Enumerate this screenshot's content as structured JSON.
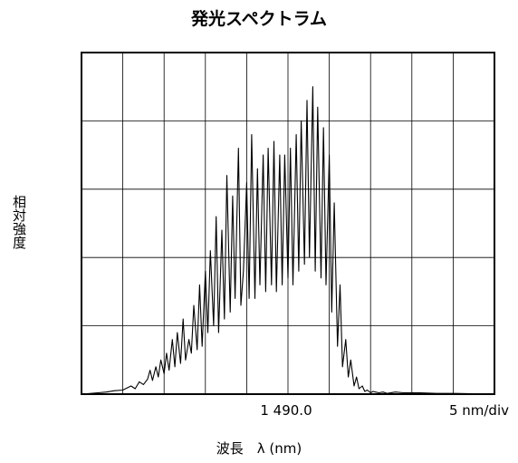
{
  "chart_data": {
    "type": "line",
    "title": "発光スペクトラム",
    "ylabel": "相対強度",
    "xlabel": "波長　λ (nm)",
    "x_center_label": "1 490.0",
    "x_scale_label": "5 nm/div",
    "x_center": 1490.0,
    "x_per_div": 5,
    "xlim": [
      1465,
      1515
    ],
    "ylim": [
      0,
      5
    ],
    "grid": true,
    "series": [
      {
        "x": [
          1465,
          1467,
          1468,
          1469,
          1470,
          1470.5,
          1471,
          1471.5,
          1472,
          1472.5,
          1473,
          1473.3,
          1473.6,
          1474,
          1474.3,
          1474.6,
          1475,
          1475.3,
          1475.6,
          1476,
          1476.3,
          1476.6,
          1477,
          1477.3,
          1477.6,
          1478,
          1478.3,
          1478.6,
          1479,
          1479.3,
          1479.6,
          1480,
          1480.3,
          1480.6,
          1481,
          1481.3,
          1481.6,
          1482,
          1482.3,
          1482.6,
          1483,
          1483.3,
          1483.6,
          1484,
          1484.3,
          1484.6,
          1485,
          1485.3,
          1485.6,
          1486,
          1486.3,
          1486.6,
          1487,
          1487.3,
          1487.6,
          1488,
          1488.3,
          1488.6,
          1489,
          1489.3,
          1489.6,
          1490,
          1490.3,
          1490.6,
          1491,
          1491.3,
          1491.6,
          1492,
          1492.3,
          1492.6,
          1493,
          1493.3,
          1493.6,
          1494,
          1494.3,
          1494.6,
          1495,
          1495.3,
          1495.6,
          1496,
          1496.3,
          1496.6,
          1497,
          1497.3,
          1497.6,
          1498,
          1498.3,
          1498.6,
          1499,
          1499.3,
          1499.6,
          1500,
          1500.3,
          1500.6,
          1501,
          1501.5,
          1502,
          1503,
          1504,
          1506,
          1508,
          1510,
          1515
        ],
        "y": [
          0.0,
          0.02,
          0.03,
          0.05,
          0.06,
          0.09,
          0.12,
          0.08,
          0.18,
          0.14,
          0.22,
          0.35,
          0.2,
          0.4,
          0.25,
          0.5,
          0.3,
          0.6,
          0.35,
          0.8,
          0.4,
          0.9,
          0.45,
          1.1,
          0.5,
          0.8,
          0.6,
          1.3,
          0.65,
          1.6,
          0.7,
          1.8,
          0.9,
          2.1,
          1.0,
          2.6,
          0.9,
          2.4,
          1.1,
          3.2,
          1.2,
          2.9,
          1.4,
          3.6,
          1.3,
          1.8,
          3.1,
          1.4,
          3.8,
          1.4,
          3.3,
          1.6,
          3.5,
          1.5,
          3.6,
          1.6,
          3.7,
          1.5,
          3.5,
          1.6,
          3.5,
          1.7,
          3.6,
          1.6,
          3.8,
          1.8,
          4.0,
          1.9,
          4.3,
          2.0,
          4.5,
          1.8,
          4.2,
          1.7,
          3.9,
          1.6,
          3.5,
          1.2,
          2.8,
          0.7,
          1.6,
          0.4,
          0.8,
          0.25,
          0.5,
          0.12,
          0.25,
          0.08,
          0.12,
          0.04,
          0.06,
          0.02,
          0.04,
          0.03,
          0.02,
          0.03,
          0.01,
          0.03,
          0.02,
          0.02,
          0.01,
          0.01,
          0.0
        ]
      }
    ]
  }
}
